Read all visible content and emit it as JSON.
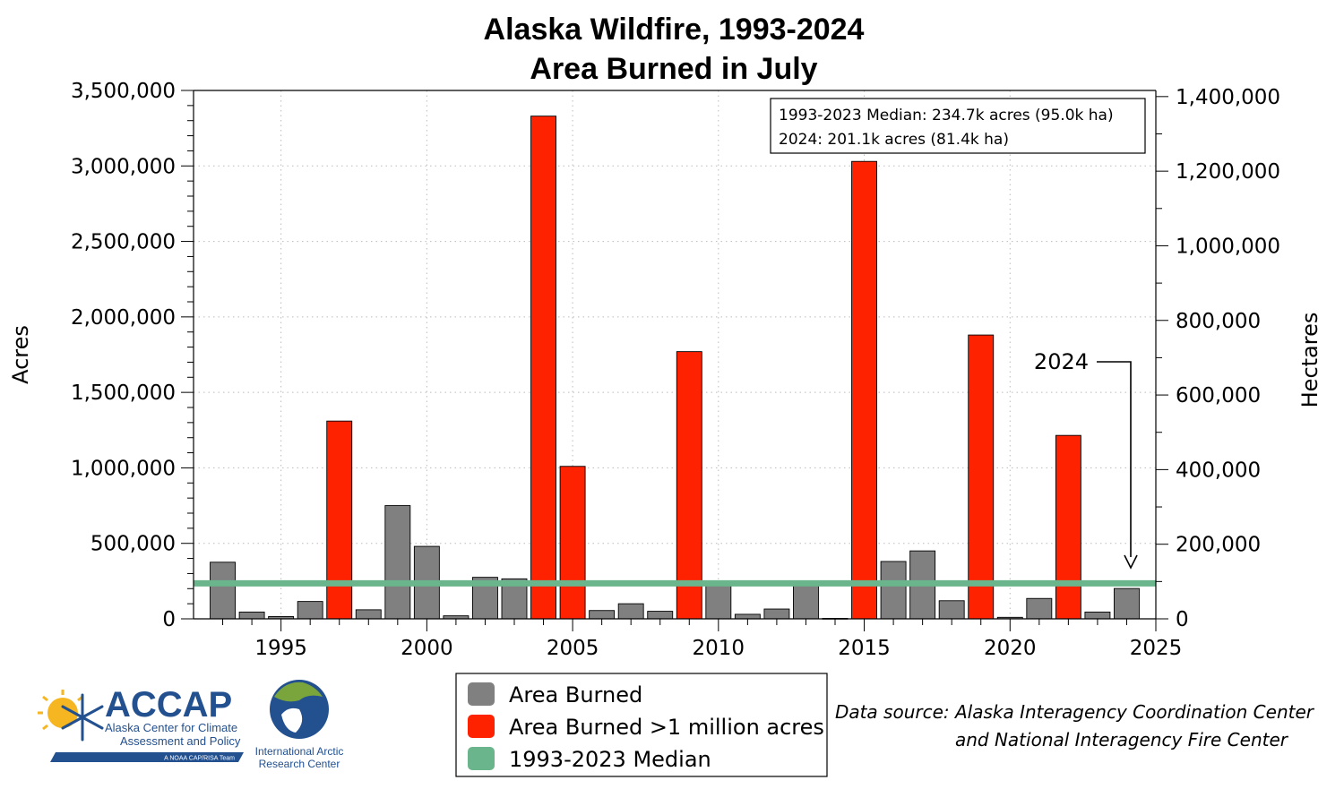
{
  "chart_data": {
    "type": "bar",
    "title": "Alaska Wildfire, 1993-2024",
    "subtitle": "Area Burned in July",
    "ylabel": "Acres",
    "y2label": "Hectares",
    "ylim": [
      0,
      3500000
    ],
    "y2lim": [
      0,
      1416400
    ],
    "xlim": [
      1992,
      2025
    ],
    "x_ticks": [
      "1995",
      "2000",
      "2005",
      "2010",
      "2015",
      "2020",
      "2025"
    ],
    "y_ticks": [
      "0",
      "500,000",
      "1,000,000",
      "1,500,000",
      "2,000,000",
      "2,500,000",
      "3,000,000",
      "3,500,000"
    ],
    "y2_ticks": [
      "0",
      "200,000",
      "400,000",
      "600,000",
      "800,000",
      "1,000,000",
      "1,200,000",
      "1,400,000"
    ],
    "grid": true,
    "legend_position": "bottom-center",
    "series": [
      {
        "name": "Area Burned",
        "color": "#808080",
        "points": [
          {
            "year": 1993,
            "acres": 375000
          },
          {
            "year": 1994,
            "acres": 45000
          },
          {
            "year": 1995,
            "acres": 15000
          },
          {
            "year": 1996,
            "acres": 115000
          },
          {
            "year": 1998,
            "acres": 60000
          },
          {
            "year": 1999,
            "acres": 750000
          },
          {
            "year": 2000,
            "acres": 480000
          },
          {
            "year": 2001,
            "acres": 20000
          },
          {
            "year": 2002,
            "acres": 275000
          },
          {
            "year": 2003,
            "acres": 265000
          },
          {
            "year": 2006,
            "acres": 55000
          },
          {
            "year": 2007,
            "acres": 100000
          },
          {
            "year": 2008,
            "acres": 50000
          },
          {
            "year": 2010,
            "acres": 240000
          },
          {
            "year": 2011,
            "acres": 30000
          },
          {
            "year": 2012,
            "acres": 65000
          },
          {
            "year": 2013,
            "acres": 235000
          },
          {
            "year": 2014,
            "acres": 3000
          },
          {
            "year": 2016,
            "acres": 380000
          },
          {
            "year": 2017,
            "acres": 450000
          },
          {
            "year": 2018,
            "acres": 120000
          },
          {
            "year": 2020,
            "acres": 10000
          },
          {
            "year": 2021,
            "acres": 135000
          },
          {
            "year": 2023,
            "acres": 45000
          },
          {
            "year": 2024,
            "acres": 201100
          }
        ]
      },
      {
        "name": "Area Burned >1 million acres",
        "color": "#ff2200",
        "points": [
          {
            "year": 1997,
            "acres": 1310000
          },
          {
            "year": 2004,
            "acres": 3330000
          },
          {
            "year": 2005,
            "acres": 1010000
          },
          {
            "year": 2009,
            "acres": 1770000
          },
          {
            "year": 2015,
            "acres": 3030000
          },
          {
            "year": 2019,
            "acres": 1880000
          },
          {
            "year": 2022,
            "acres": 1215000
          }
        ]
      }
    ],
    "median": {
      "name": "1993-2023 Median",
      "acres": 234700,
      "color": "#6ab58b"
    },
    "info_box": [
      "1993-2023 Median: 234.7k acres (95.0k ha)",
      "2024: 201.1k acres (81.4k ha)"
    ],
    "annotation": {
      "text": "2024",
      "year": 2024
    }
  },
  "legend": {
    "items": [
      {
        "label": "Area Burned",
        "color": "#808080"
      },
      {
        "label": "Area Burned >1 million acres",
        "color": "#ff2200"
      },
      {
        "label": "1993-2023 Median",
        "color": "#6ab58b"
      }
    ]
  },
  "source": {
    "line1": "Data source: Alaska Interagency Coordination Center",
    "line2": "and National Interagency Fire Center"
  },
  "logos": {
    "accap": {
      "name": "ACCAP",
      "line1": "Alaska Center for Climate",
      "line2": "Assessment and Policy",
      "tagline": "A NOAA CAP/RISA Team"
    },
    "iarc": {
      "line1": "International Arctic",
      "line2": "Research Center"
    }
  }
}
